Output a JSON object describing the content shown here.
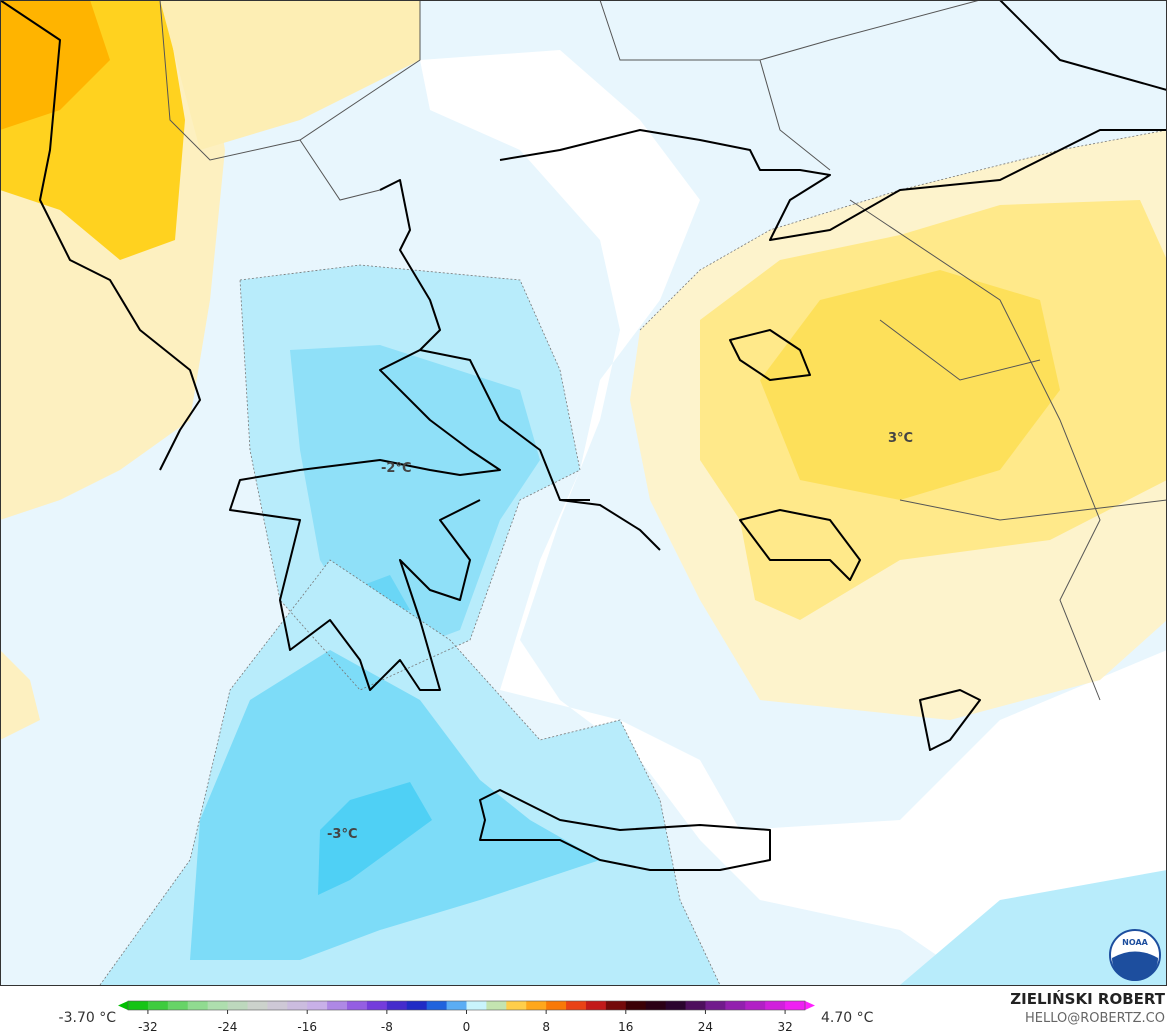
{
  "map": {
    "contour_labels": [
      "-2°C",
      "3°C",
      "-3°C"
    ],
    "logo": "NOAA"
  },
  "colorbar": {
    "min_label": "-3.70 °C",
    "max_label": "4.70 °C",
    "lim": [
      -34,
      34
    ],
    "ticks": [
      -32,
      -24,
      -16,
      -8,
      0,
      8,
      16,
      24,
      32
    ]
  },
  "credit": {
    "author": "ZIELIŃSKI ROBERT",
    "contact": "HELLO@ROBERTZ.CO"
  }
}
